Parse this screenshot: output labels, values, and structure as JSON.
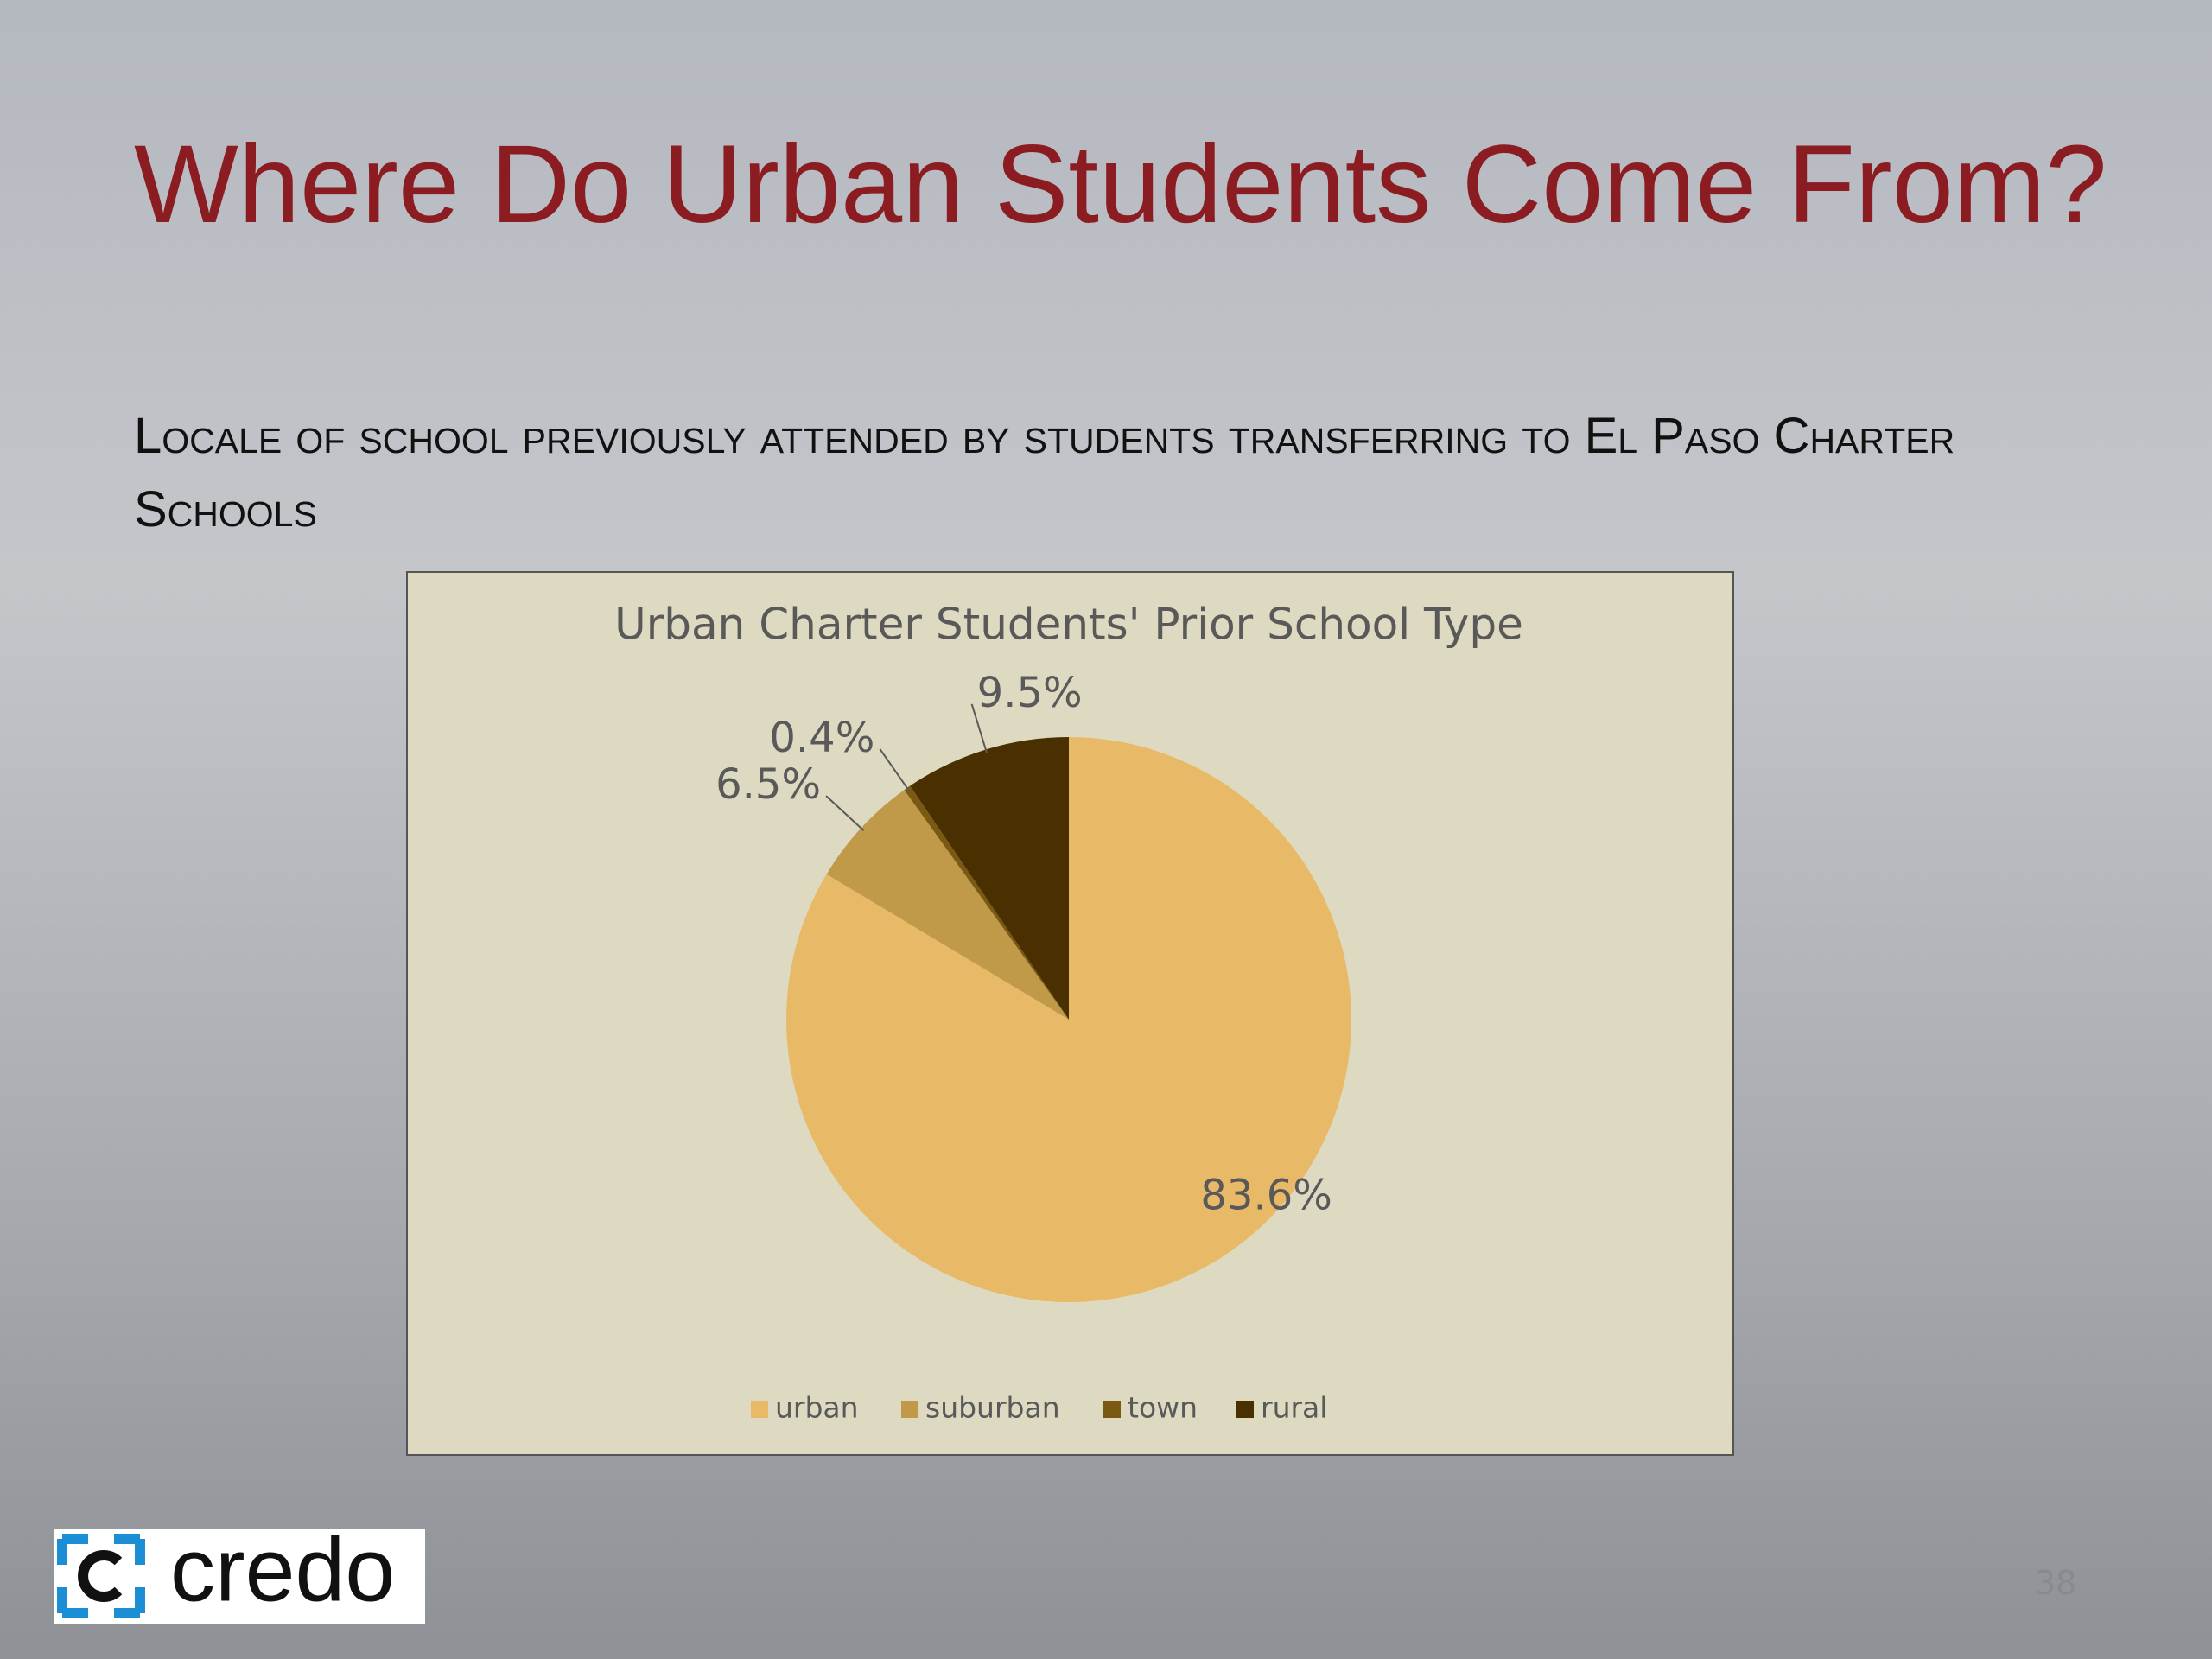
{
  "title": "Where Do Urban Students Come From?",
  "subtitle": "Locale of school previously attended by students transferring to El Paso Charter Schools",
  "logo": "credo",
  "page_number": "38",
  "chart_data": {
    "type": "pie",
    "title": "Urban Charter Students' Prior School Type",
    "categories": [
      "urban",
      "suburban",
      "town",
      "rural"
    ],
    "values": [
      83.6,
      6.5,
      0.4,
      9.5
    ],
    "value_labels": [
      "83.6%",
      "6.5%",
      "0.4%",
      "9.5%"
    ],
    "colors": [
      "#e8b967",
      "#c09a48",
      "#7a5a12",
      "#4a3000"
    ],
    "legend": "bottom"
  }
}
